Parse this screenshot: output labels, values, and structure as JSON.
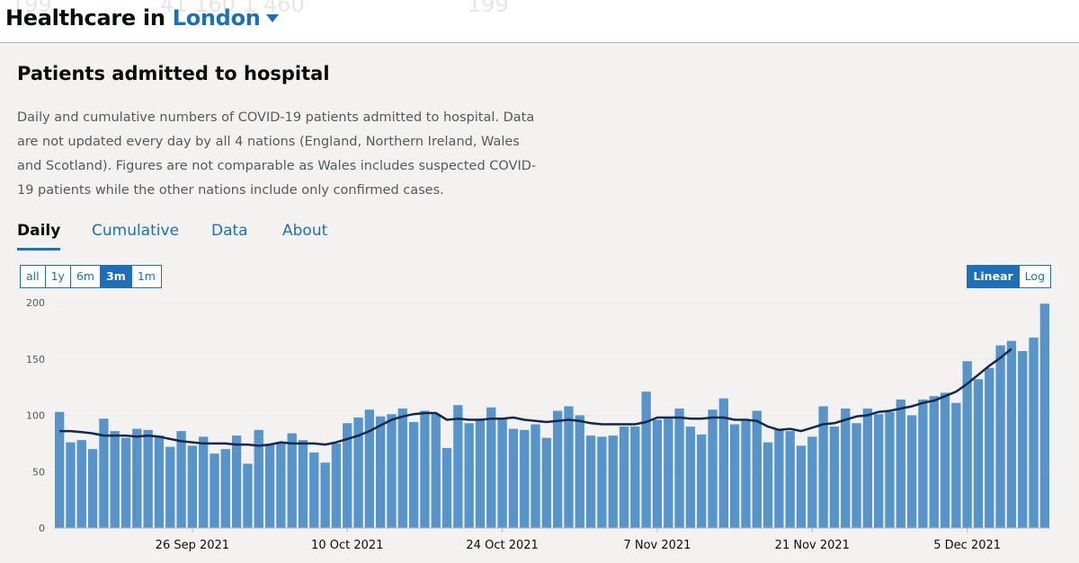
{
  "header": {
    "title_prefix": "Healthcare in",
    "location": "London",
    "ghost_values": [
      "199",
      "41 160",
      "1 460",
      "199"
    ]
  },
  "card": {
    "title": "Patients admitted to hospital",
    "description": "Daily and cumulative numbers of COVID-19 patients admitted to hospital. Data are not updated every day by all 4 nations (England, Northern Ireland, Wales and Scotland). Figures are not comparable as Wales includes suspected COVID-19 patients while the other nations include only confirmed cases."
  },
  "tabs": [
    {
      "label": "Daily",
      "active": true
    },
    {
      "label": "Cumulative",
      "active": false
    },
    {
      "label": "Data",
      "active": false
    },
    {
      "label": "About",
      "active": false
    }
  ],
  "timespan": {
    "options": [
      "all",
      "1y",
      "6m",
      "3m",
      "1m"
    ],
    "selected": "3m"
  },
  "scale": {
    "options": [
      "Linear",
      "Log"
    ],
    "selected": "Linear"
  },
  "colors": {
    "bar": "#5694ca",
    "line": "#12294d",
    "accent": "#1d70b8",
    "grid": "#ebebeb"
  },
  "chart_data": {
    "type": "bar",
    "x_start": "2021-09-14",
    "ylim": [
      0,
      200
    ],
    "yticks": [
      0,
      50,
      100,
      150,
      200
    ],
    "xticks": [
      {
        "label": "26 Sep 2021",
        "index": 12
      },
      {
        "label": "10 Oct 2021",
        "index": 26
      },
      {
        "label": "24 Oct 2021",
        "index": 40
      },
      {
        "label": "7 Nov 2021",
        "index": 54
      },
      {
        "label": "21 Nov 2021",
        "index": 68
      },
      {
        "label": "5 Dec 2021",
        "index": 82
      }
    ],
    "series": [
      {
        "name": "Daily admissions",
        "values": [
          103,
          76,
          78,
          70,
          97,
          86,
          80,
          88,
          87,
          82,
          72,
          86,
          73,
          81,
          66,
          70,
          82,
          57,
          87,
          74,
          76,
          84,
          78,
          67,
          58,
          75,
          93,
          98,
          105,
          99,
          101,
          106,
          94,
          104,
          101,
          71,
          109,
          93,
          97,
          107,
          97,
          88,
          87,
          92,
          80,
          104,
          108,
          100,
          82,
          81,
          82,
          90,
          90,
          121,
          96,
          97,
          106,
          90,
          83,
          105,
          115,
          92,
          95,
          104,
          76,
          87,
          86,
          73,
          81,
          108,
          90,
          106,
          93,
          106,
          101,
          103,
          114,
          100,
          114,
          117,
          120,
          111,
          148,
          132,
          142,
          162,
          166,
          157,
          169,
          199
        ]
      },
      {
        "name": "7-day average",
        "values": [
          86,
          86,
          85,
          84,
          82,
          82,
          82,
          81,
          82,
          81,
          79,
          77,
          76,
          75,
          75,
          75,
          74,
          74,
          73,
          74,
          76,
          75,
          75,
          75,
          74,
          76,
          79,
          82,
          86,
          91,
          96,
          99,
          101,
          102,
          102,
          96,
          97,
          96,
          96,
          97,
          97,
          98,
          96,
          95,
          94,
          95,
          96,
          95,
          93,
          92,
          92,
          92,
          92,
          94,
          98,
          98,
          98,
          97,
          97,
          98,
          98,
          96,
          96,
          95,
          90,
          87,
          88,
          86,
          89,
          92,
          93,
          96,
          99,
          100,
          103,
          104,
          106,
          108,
          111,
          113,
          117,
          121,
          128,
          136,
          144,
          151,
          159,
          null,
          null,
          null
        ]
      }
    ]
  }
}
